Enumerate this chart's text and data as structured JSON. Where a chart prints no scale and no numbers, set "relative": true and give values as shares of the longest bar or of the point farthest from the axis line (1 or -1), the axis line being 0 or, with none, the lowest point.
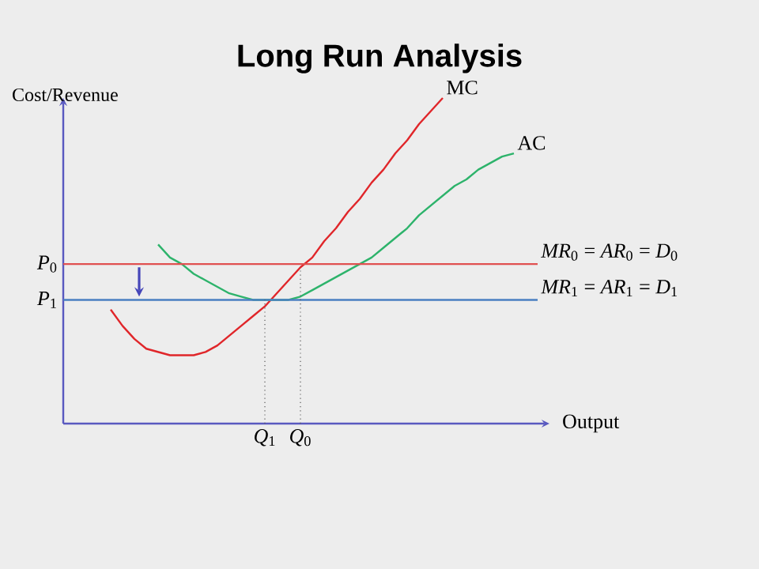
{
  "chart_data": {
    "type": "line",
    "title": "Long Run Analysis",
    "xlabel": "Output",
    "ylabel": "Cost/Revenue",
    "relative": true,
    "legend": false,
    "categories": [
      null,
      null,
      null,
      null,
      null,
      null,
      null,
      null,
      null,
      null,
      null,
      null,
      null,
      null,
      null,
      null,
      null,
      "*Q*$_{1}$",
      null,
      null,
      "*Q*$_{0}$",
      null,
      null,
      null,
      null,
      null,
      null,
      null,
      null,
      null,
      null,
      null,
      null,
      null,
      null,
      null,
      null,
      null,
      null,
      null,
      null
    ],
    "series": [
      {
        "name": "MC",
        "color": "#e0262a",
        "values": [
          null,
          null,
          null,
          null,
          0.35,
          0.3,
          0.26,
          0.23,
          0.22,
          0.21,
          0.21,
          0.21,
          0.22,
          0.24,
          0.27,
          0.3,
          0.33,
          0.36,
          0.4,
          0.44,
          0.48,
          0.51,
          0.56,
          0.6,
          0.65,
          0.69,
          0.74,
          0.78,
          0.83,
          0.87,
          0.92,
          0.96,
          1,
          null,
          null,
          null,
          null,
          null,
          null,
          null,
          null
        ]
      },
      {
        "name": "AC",
        "color": "#2db36b",
        "values": [
          null,
          null,
          null,
          null,
          null,
          null,
          null,
          null,
          0.55,
          0.51,
          0.49,
          0.46,
          0.44,
          0.42,
          0.4,
          0.39,
          0.38,
          0.38,
          0.38,
          0.38,
          0.39,
          0.41,
          0.43,
          0.45,
          0.47,
          0.49,
          0.51,
          0.54,
          0.57,
          0.6,
          0.64,
          0.67,
          0.7,
          0.73,
          0.75,
          0.78,
          0.8,
          0.82,
          0.83,
          null,
          null
        ]
      },
      {
        "name": "*MR*$_{0}$ = *AR*$_{0}$ = *D*$_{0}$",
        "color": "#e05050",
        "values": [
          0.49,
          0.49,
          0.49,
          0.49,
          0.49,
          0.49,
          0.49,
          0.49,
          0.49,
          0.49,
          0.49,
          0.49,
          0.49,
          0.49,
          0.49,
          0.49,
          0.49,
          0.49,
          0.49,
          0.49,
          0.49,
          0.49,
          0.49,
          0.49,
          0.49,
          0.49,
          0.49,
          0.49,
          0.49,
          0.49,
          0.49,
          0.49,
          0.49,
          0.49,
          0.49,
          0.49,
          0.49,
          0.49,
          0.49,
          0.49,
          0.49
        ]
      },
      {
        "name": "*MR*$_{1}$ = *AR*$_{1}$ = *D*$_{1}$",
        "color": "#4a7fc1",
        "values": [
          0.38,
          0.38,
          0.38,
          0.38,
          0.38,
          0.38,
          0.38,
          0.38,
          0.38,
          0.38,
          0.38,
          0.38,
          0.38,
          0.38,
          0.38,
          0.38,
          0.38,
          0.38,
          0.38,
          0.38,
          0.38,
          0.38,
          0.38,
          0.38,
          0.38,
          0.38,
          0.38,
          0.38,
          0.38,
          0.38,
          0.38,
          0.38,
          0.38,
          0.38,
          0.38,
          0.38,
          0.38,
          0.38,
          0.38,
          0.38,
          0.38
        ]
      }
    ],
    "ref_lines": [
      {
        "axis": "x",
        "value": "*Q*$_{1}$",
        "color": "#595959",
        "line_style": "dotted"
      },
      {
        "axis": "x",
        "value": "*Q*$_{0}$",
        "color": "#595959",
        "line_style": "dotted"
      }
    ],
    "annotations": [
      "*P*$_{0}$",
      "*P*$_{1}$"
    ]
  }
}
